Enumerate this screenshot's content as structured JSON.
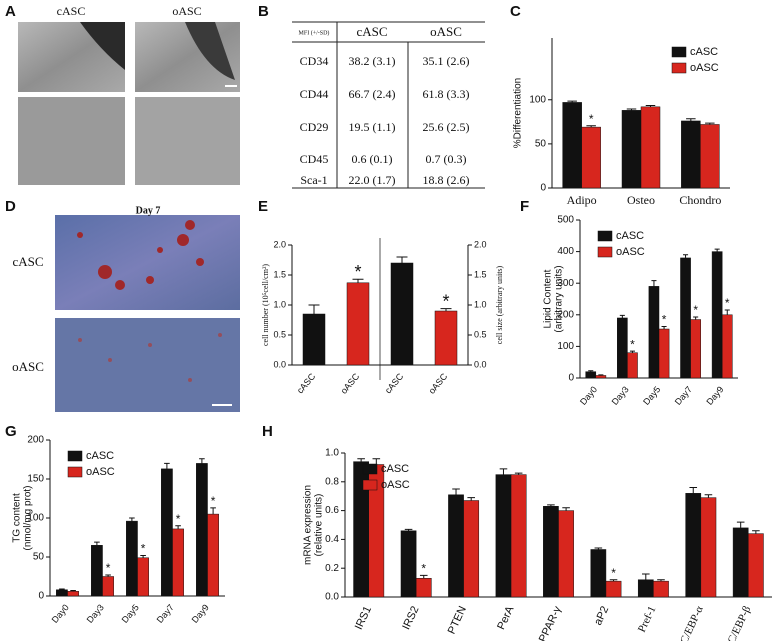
{
  "panel_labels": [
    "A",
    "B",
    "C",
    "D",
    "E",
    "F",
    "G",
    "H"
  ],
  "panel_a": {
    "columns": [
      "cASC",
      "oASC"
    ]
  },
  "table_b": {
    "header": [
      "MFI (+/-SD)",
      "cASC",
      "oASC"
    ],
    "rows": [
      [
        "CD34",
        "38.2 (3.1)",
        "35.1 (2.6)"
      ],
      [
        "CD44",
        "66.7 (2.4)",
        "61.8 (3.3)"
      ],
      [
        "CD29",
        "19.5 (1.1)",
        "25.6 (2.5)"
      ],
      [
        "CD45",
        "0.6 (0.1)",
        "0.7 (0.3)"
      ],
      [
        "Sca-1",
        "22.0 (1.7)",
        "18.8 (2.6)"
      ]
    ]
  },
  "panel_d": {
    "title": "Day 7",
    "rows": [
      "cASC",
      "oASC"
    ]
  },
  "chart_data": [
    {
      "type": "bar",
      "ylabel": "%Differentiation",
      "categories": [
        "Adipo",
        "Osteo",
        "Chondro"
      ],
      "series": [
        {
          "name": "cASC",
          "color": "#111111",
          "values": [
            97,
            88,
            76
          ],
          "errors": [
            1.5,
            1.5,
            2.5
          ],
          "significance": [
            null,
            null,
            null
          ]
        },
        {
          "name": "oASC",
          "color": "#d7261e",
          "values": [
            69,
            92,
            72
          ],
          "errors": [
            1.5,
            1.5,
            1.5
          ],
          "significance": [
            "*",
            null,
            null
          ]
        }
      ],
      "ylim": [
        0,
        170
      ],
      "yticks": [
        0,
        50,
        100
      ],
      "legend": "upper right"
    },
    {
      "type": "bar",
      "ylabel": "cell number (10⁵cell/cm²)",
      "categories": [
        "cASC",
        "oASC"
      ],
      "values": [
        0.85,
        1.37
      ],
      "errors": [
        0.15,
        0.06
      ],
      "colors": [
        "#111111",
        "#d7261e"
      ],
      "significance": [
        null,
        "*"
      ],
      "ylim": [
        0,
        2
      ],
      "yticks": [
        {
          "value": 0,
          "label": "0.0"
        },
        0.5,
        {
          "value": 1,
          "label": "1.0"
        },
        1.5,
        {
          "value": 2,
          "label": "2.0"
        }
      ],
      "axis_side": "left"
    },
    {
      "type": "bar",
      "ylabel": "cell size (arbitrary units)",
      "categories": [
        "cASC",
        "oASC"
      ],
      "values": [
        1.7,
        0.9
      ],
      "errors": [
        0.1,
        0.04
      ],
      "colors": [
        "#111111",
        "#d7261e"
      ],
      "significance": [
        null,
        "*"
      ],
      "ylim": [
        0,
        2
      ],
      "yticks": [
        {
          "value": 0,
          "label": "0.0"
        },
        0.5,
        {
          "value": 1,
          "label": "1.0"
        },
        1.5,
        {
          "value": 2,
          "label": "2.0"
        }
      ],
      "axis_side": "right"
    },
    {
      "type": "bar",
      "ylabel": [
        "Lipid Content",
        "(arbitrary units)"
      ],
      "categories": [
        "Day0",
        "Day3",
        "Day5",
        "Day7",
        "Day9"
      ],
      "series": [
        {
          "name": "cASC",
          "color": "#111111",
          "values": [
            20,
            190,
            290,
            380,
            400
          ],
          "errors": [
            3,
            8,
            18,
            10,
            8
          ],
          "significance": [
            null,
            null,
            null,
            null,
            null
          ]
        },
        {
          "name": "oASC",
          "color": "#d7261e",
          "values": [
            8,
            80,
            155,
            185,
            200
          ],
          "errors": [
            2,
            5,
            8,
            8,
            15
          ],
          "significance": [
            null,
            "*",
            "*",
            "*",
            "*"
          ]
        }
      ],
      "ylim": [
        0,
        500
      ],
      "yticks": [
        0,
        100,
        200,
        300,
        400,
        500
      ],
      "legend": "upper left"
    },
    {
      "type": "bar",
      "ylabel": [
        "TG content",
        "(nmol/mg prot)"
      ],
      "categories": [
        "Day0",
        "Day3",
        "Day5",
        "Day7",
        "Day9"
      ],
      "series": [
        {
          "name": "cASC",
          "color": "#111111",
          "values": [
            8,
            65,
            96,
            163,
            170
          ],
          "errors": [
            1,
            4,
            4,
            7,
            6
          ],
          "significance": [
            null,
            null,
            null,
            null,
            null
          ]
        },
        {
          "name": "oASC",
          "color": "#d7261e",
          "values": [
            6,
            25,
            49,
            86,
            105
          ],
          "errors": [
            1,
            2,
            3,
            4,
            8
          ],
          "significance": [
            null,
            "*",
            "*",
            "*",
            "*"
          ]
        }
      ],
      "ylim": [
        0,
        200
      ],
      "yticks": [
        0,
        50,
        100,
        150,
        200
      ],
      "legend": "upper left"
    },
    {
      "type": "bar",
      "ylabel": [
        "mRNA expression",
        "(relative units)"
      ],
      "categories": [
        "IRS1",
        "IRS2",
        "PTEN",
        "PerA",
        "PPAR-γ",
        "aP2",
        "Pref-1",
        "C/EBP-α",
        "C/EBP-β"
      ],
      "series": [
        {
          "name": "cASC",
          "color": "#111111",
          "values": [
            0.94,
            0.46,
            0.71,
            0.85,
            0.63,
            0.33,
            0.12,
            0.72,
            0.48
          ],
          "errors": [
            0.02,
            0.01,
            0.04,
            0.04,
            0.01,
            0.01,
            0.04,
            0.04,
            0.04
          ],
          "significance": [
            null,
            null,
            null,
            null,
            null,
            null,
            null,
            null,
            null
          ]
        },
        {
          "name": "oASC",
          "color": "#d7261e",
          "values": [
            0.92,
            0.13,
            0.67,
            0.85,
            0.6,
            0.11,
            0.11,
            0.69,
            0.44
          ],
          "errors": [
            0.04,
            0.02,
            0.02,
            0.01,
            0.02,
            0.01,
            0.01,
            0.02,
            0.02
          ],
          "significance": [
            null,
            "*",
            null,
            null,
            null,
            "*",
            null,
            null,
            null
          ]
        }
      ],
      "ylim": [
        0,
        1
      ],
      "yticks": [
        {
          "value": 0,
          "label": "0.0"
        },
        0.2,
        0.4,
        0.6,
        0.8,
        {
          "value": 1,
          "label": "1.0"
        }
      ],
      "legend": "upper left"
    }
  ]
}
